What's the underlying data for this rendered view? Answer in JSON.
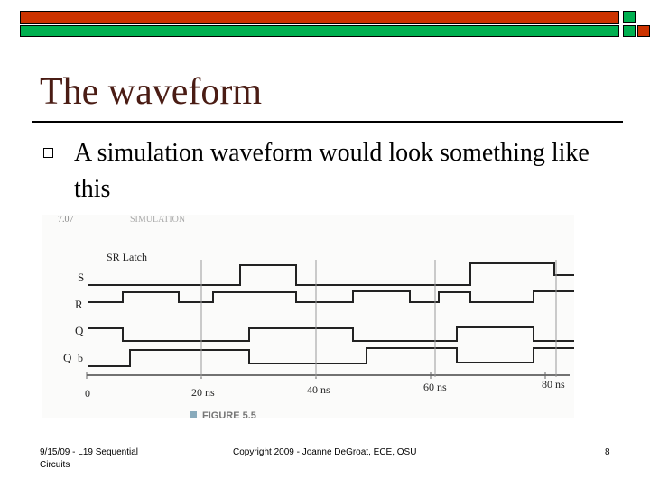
{
  "slide": {
    "title": "The waveform",
    "bullet": "A simulation waveform would look something like this"
  },
  "figure": {
    "header_text": "SR Latch",
    "caption_fragment": "FIGURE 5.5",
    "signals": [
      "S",
      "R",
      "Q",
      "Q_b"
    ],
    "signal_labels": [
      "S",
      "R",
      "Q",
      "Q",
      "b"
    ],
    "time_labels": [
      "0",
      "20 ns",
      "40 ns",
      "60 ns",
      "80 ns"
    ]
  },
  "footer": {
    "left": "9/15/09 - L19 Sequential Circuits",
    "center": "Copyright 2009 - Joanne DeGroat, ECE, OSU",
    "page": "8"
  },
  "colors": {
    "red_bar": "#cc3300",
    "green_bar": "#00b050",
    "title": "#4a1c14"
  }
}
